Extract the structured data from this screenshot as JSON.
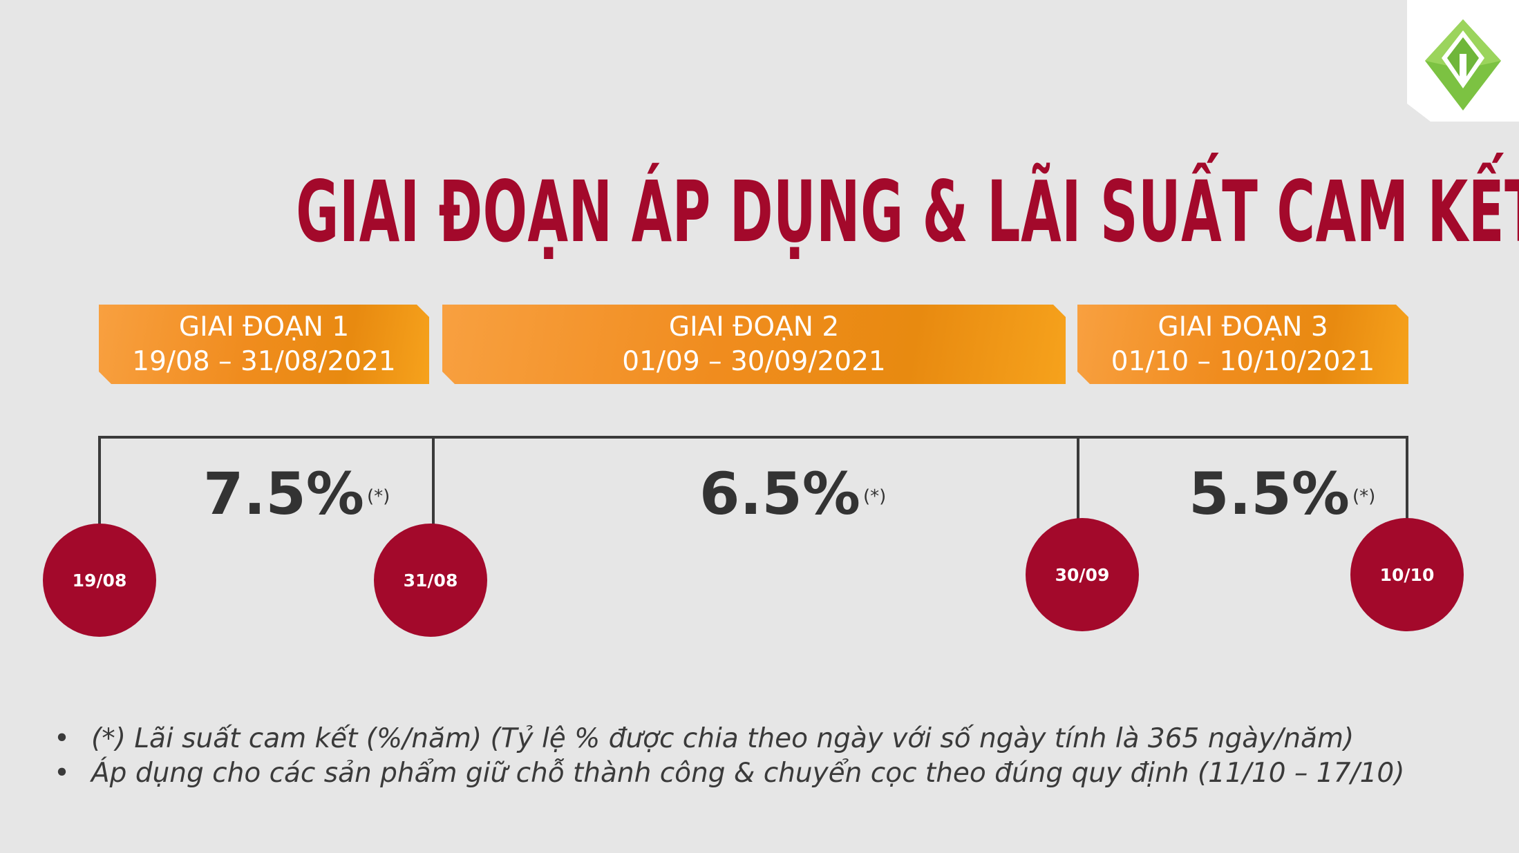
{
  "title": "GIAI ĐOẠN ÁP DỤNG & LÃI SUẤT CAM KẾT",
  "logo": {
    "icon": "cube-logo-icon",
    "colors": {
      "green": "#7cc242",
      "white": "#ffffff"
    }
  },
  "colors": {
    "accent": "#a3092b",
    "orange": "#f08c1e",
    "text": "#333333",
    "background": "#e6e6e6"
  },
  "phases": [
    {
      "label": "GIAI ĐOẠN 1",
      "range": "19/08 – 31/08/2021"
    },
    {
      "label": "GIAI ĐOẠN 2",
      "range": "01/09 – 30/09/2021"
    },
    {
      "label": "GIAI ĐOẠN 3",
      "range": "01/10 – 10/10/2021"
    }
  ],
  "rates": [
    {
      "value": "7.5%",
      "note": "(*)"
    },
    {
      "value": "6.5%",
      "note": "(*)"
    },
    {
      "value": "5.5%",
      "note": "(*)"
    }
  ],
  "markers": [
    "19/08",
    "31/08",
    "30/09",
    "10/10"
  ],
  "notes": [
    {
      "bullet": "•",
      "text": "(*) Lãi suất cam kết (%/năm) (Tỷ lệ % được chia theo ngày với số ngày tính là 365 ngày/năm)"
    },
    {
      "bullet": "•",
      "text": "Áp dụng cho các sản phẩm giữ chỗ thành công & chuyển cọc theo đúng quy định (11/10 – 17/10)"
    }
  ]
}
